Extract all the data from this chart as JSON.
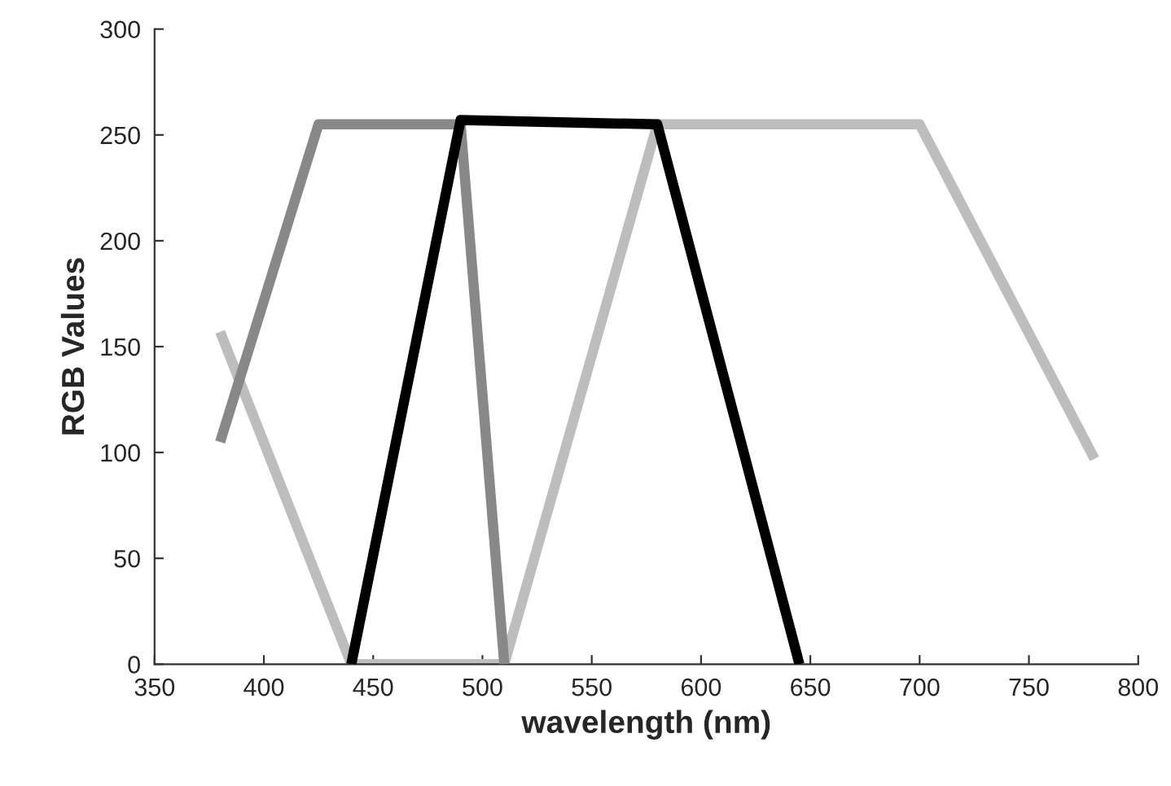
{
  "chart_data": {
    "type": "line",
    "xlabel": "wavelength (nm)",
    "ylabel": "RGB Values",
    "series": [
      {
        "color": "#bdbdbd",
        "x": [
          380,
          440,
          510,
          580,
          700,
          780
        ],
        "values": [
          157,
          0,
          0,
          255,
          255,
          97
        ]
      },
      {
        "color": "#888888",
        "x": [
          380,
          425,
          490,
          510
        ],
        "values": [
          105,
          255,
          255,
          0
        ]
      },
      {
        "color": "#000000",
        "x": [
          440,
          490,
          580,
          645
        ],
        "values": [
          0,
          257,
          255,
          0
        ]
      }
    ],
    "xlim": [
      350,
      800
    ],
    "xticks": [
      350,
      400,
      450,
      500,
      550,
      600,
      650,
      700,
      750,
      800
    ],
    "ylim": [
      0,
      300
    ],
    "yticks": [
      0,
      50,
      100,
      150,
      200,
      250,
      300
    ],
    "grid": false,
    "marker": "none",
    "line_style": "solid"
  }
}
